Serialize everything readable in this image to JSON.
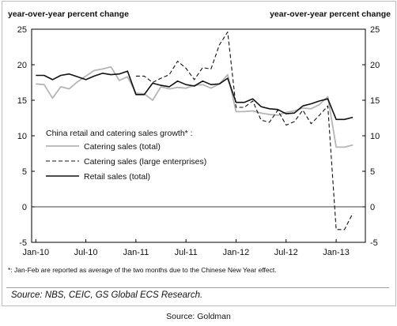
{
  "chart_data": {
    "type": "line",
    "ylabel_left": "year-over-year percent change",
    "ylabel_right": "year-over-year percent change",
    "ylim": [
      -5,
      25
    ],
    "yticks": [
      -5,
      0,
      5,
      10,
      15,
      20,
      25
    ],
    "x_tick_labels": [
      "Jan-10",
      "Jul-10",
      "Jan-11",
      "Jul-11",
      "Jan-12",
      "Jul-12",
      "Jan-13"
    ],
    "x_start": "Jan-10",
    "x_end": "Apr-13",
    "zero_line": true,
    "legend_title": "China retail and catering sales growth* :",
    "legend_position": "center-left",
    "series": [
      {
        "name": "Catering sales (total)",
        "color": "#b5b5b5",
        "dash": "solid",
        "values": [
          17.3,
          17.2,
          15.3,
          16.9,
          16.6,
          17.6,
          18.4,
          19.2,
          19.4,
          19.7,
          17.8,
          18.3,
          16.0,
          15.9,
          15.0,
          16.9,
          16.6,
          16.8,
          16.7,
          17.1,
          17.2,
          16.7,
          17.3,
          18.6,
          13.4,
          13.4,
          13.5,
          13.2,
          13.0,
          12.9,
          13.3,
          13.5,
          13.9,
          13.8,
          14.4,
          15.5,
          8.4,
          8.4,
          8.7
        ]
      },
      {
        "name": "Catering sales (large enterprises)",
        "color": "#111111",
        "dash": "dashed",
        "values": [
          null,
          null,
          null,
          null,
          null,
          null,
          null,
          null,
          null,
          null,
          null,
          null,
          18.4,
          18.4,
          17.5,
          18.1,
          18.6,
          20.5,
          19.5,
          17.9,
          19.6,
          19.4,
          22.8,
          24.6,
          14.0,
          14.0,
          14.9,
          12.2,
          11.9,
          13.6,
          11.5,
          12.0,
          13.6,
          11.7,
          12.9,
          14.2,
          -3.2,
          -3.2,
          -0.9
        ]
      },
      {
        "name": "Retail sales (total)",
        "color": "#111111",
        "dash": "solid",
        "values": [
          18.5,
          18.5,
          17.9,
          18.5,
          18.7,
          18.3,
          17.9,
          18.4,
          18.8,
          18.6,
          18.7,
          19.1,
          15.8,
          15.8,
          17.4,
          17.1,
          16.9,
          17.7,
          17.2,
          17.0,
          17.7,
          17.2,
          17.3,
          18.1,
          14.7,
          14.7,
          15.2,
          14.1,
          13.8,
          13.7,
          13.1,
          13.2,
          14.2,
          14.5,
          14.9,
          15.2,
          12.3,
          12.3,
          12.6
        ]
      }
    ]
  },
  "footnote": "*: Jan-Feb are reported as average of the two months due to the Chinese New Year effect.",
  "source": "Source: NBS, CEIC, GS Global ECS Research.",
  "caption": "Source: Goldman"
}
